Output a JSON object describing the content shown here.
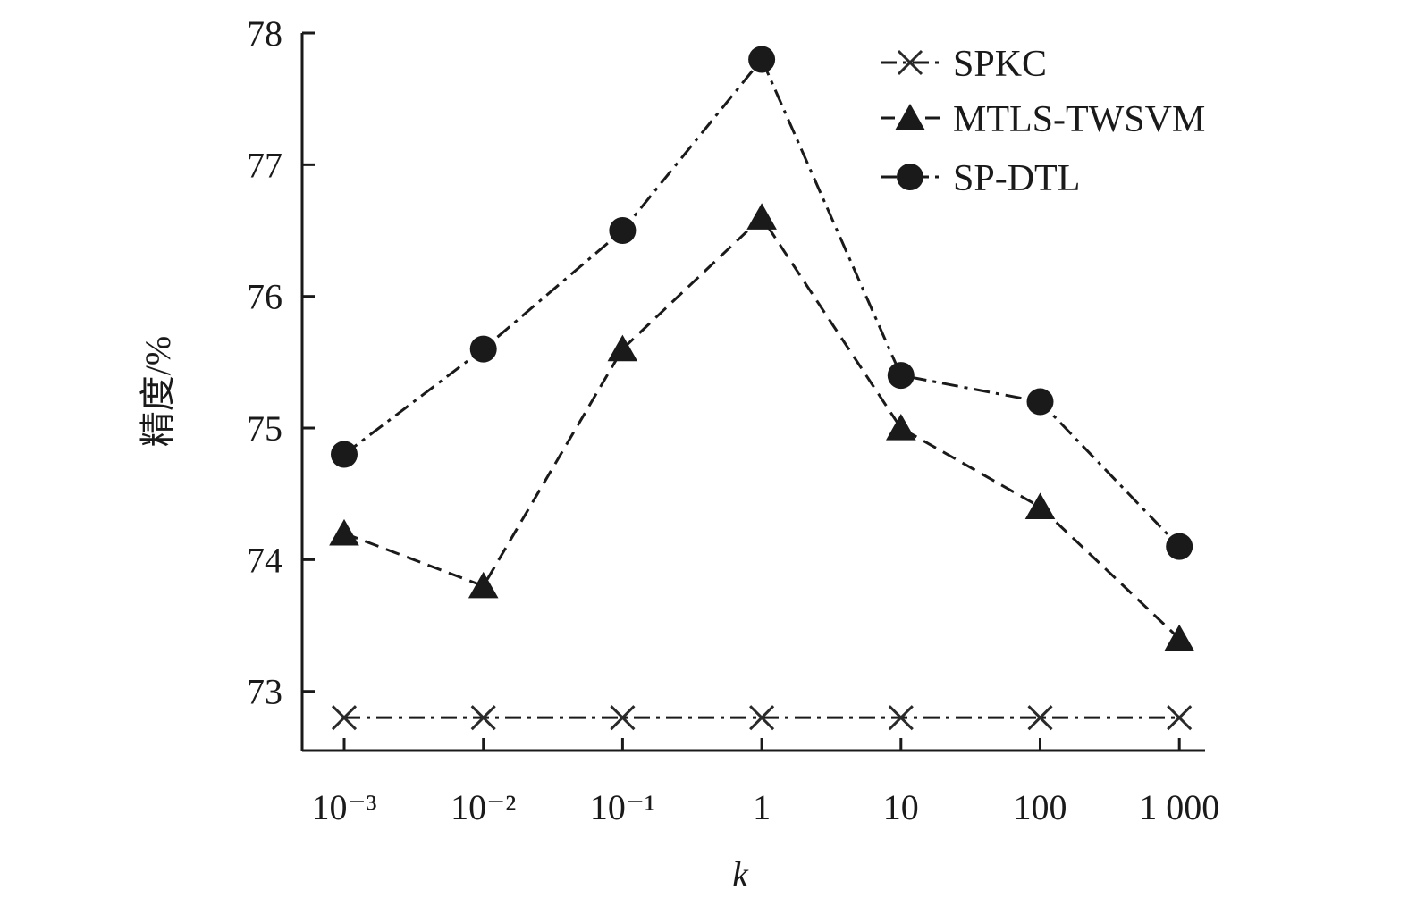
{
  "chart_data": {
    "type": "line",
    "categories": [
      "10⁻³",
      "10⁻²",
      "10⁻¹",
      "1",
      "10",
      "100",
      "1 000"
    ],
    "xlabel": "k",
    "ylabel": "精度/%",
    "ylim": [
      72.55,
      78.0
    ],
    "yticks": [
      "73",
      "74",
      "75",
      "76",
      "77",
      "78"
    ],
    "grid": false,
    "legend_position": "top-right",
    "series": [
      {
        "name": "SPKC",
        "marker": "cross",
        "dash": "dash-dot",
        "values": [
          72.8,
          72.8,
          72.8,
          72.8,
          72.8,
          72.8,
          72.8
        ]
      },
      {
        "name": "MTLS-TWSVM",
        "marker": "triangle",
        "dash": "dash",
        "values": [
          74.2,
          73.8,
          75.6,
          76.6,
          75.0,
          74.4,
          73.4
        ]
      },
      {
        "name": "SP-DTL",
        "marker": "circle",
        "dash": "dash-dot",
        "values": [
          74.8,
          75.6,
          76.5,
          77.8,
          75.4,
          75.2,
          74.1
        ]
      }
    ]
  }
}
